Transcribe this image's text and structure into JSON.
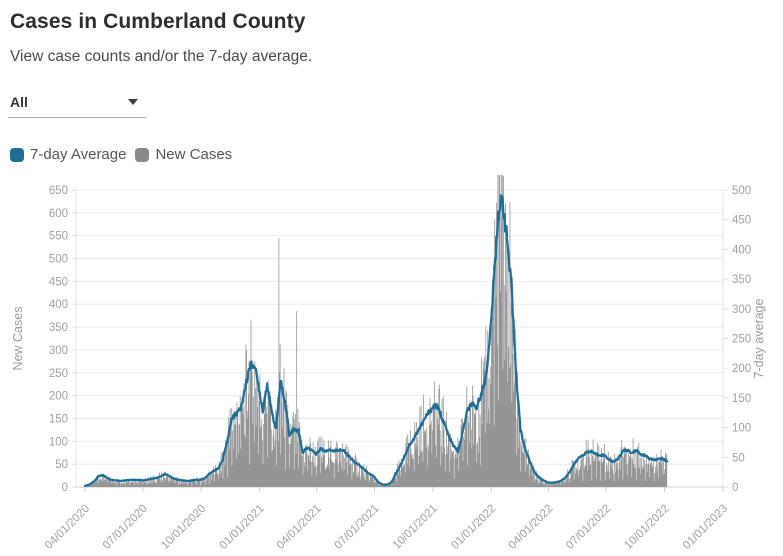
{
  "header": {
    "title": "Cases in Cumberland County",
    "subtitle": "View case counts and/or the 7-day average."
  },
  "filter": {
    "value": "All",
    "icon": "caret-down-icon"
  },
  "legend": [
    {
      "label": "7-day Average",
      "color": "#1f6e98"
    },
    {
      "label": "New Cases",
      "color": "#8a8a8a"
    }
  ],
  "chart_data": {
    "type": "mixed",
    "title": "",
    "grid": "horizontal",
    "colors": {
      "grid": "#ebebeb",
      "axis_line": "#cfcfcf",
      "axis_text": "#a0a0a0",
      "line": "#1f6e98",
      "bar": "#8f8f8f"
    },
    "x_axis": {
      "start_date": "04/01/2020",
      "span_days": 1006,
      "tick_labels": [
        "04/01/2020",
        "07/01/2020",
        "10/01/2020",
        "01/01/2021",
        "04/01/2021",
        "07/01/2021",
        "10/01/2021",
        "01/01/2022",
        "04/01/2022",
        "07/01/2022",
        "10/01/2022",
        "01/01/2023"
      ],
      "tick_days": [
        0,
        91,
        183,
        275,
        365,
        456,
        548,
        640,
        730,
        821,
        913,
        1005
      ]
    },
    "left_axis": {
      "label": "New Cases",
      "min": 0,
      "max": 650,
      "step": 50
    },
    "right_axis": {
      "label": "7-day average",
      "min": 0,
      "max": 500,
      "step": 50
    },
    "series": [
      {
        "name": "7-day Average",
        "type": "line",
        "axis": "right",
        "color": "#1f6e98",
        "x_step_days": 7,
        "start_day": 0,
        "end_day": 917,
        "values": [
          2,
          4,
          9,
          18,
          20,
          15,
          12,
          11,
          10,
          11,
          12,
          12,
          12,
          11,
          12,
          14,
          15,
          18,
          22,
          18,
          14,
          12,
          11,
          10,
          11,
          12,
          12,
          15,
          22,
          27,
          31,
          46,
          77,
          115,
          123,
          131,
          165,
          202,
          208,
          173,
          129,
          175,
          125,
          100,
          178,
          142,
          89,
          97,
          95,
          58,
          66,
          63,
          55,
          65,
          60,
          64,
          60,
          63,
          62,
          55,
          46,
          40,
          35,
          28,
          22,
          18,
          8,
          4,
          4,
          8,
          23,
          37,
          54,
          71,
          81,
          96,
          108,
          122,
          132,
          138,
          123,
          104,
          83,
          68,
          60,
          92,
          127,
          140,
          131,
          154,
          177,
          238,
          346,
          462,
          485,
          415,
          331,
          192,
          96,
          65,
          45,
          27,
          17,
          12,
          8,
          7,
          8,
          10,
          15,
          25,
          37,
          48,
          54,
          58,
          60,
          55,
          54,
          53,
          46,
          42,
          48,
          60,
          62,
          57,
          62,
          55,
          53,
          48,
          45,
          47,
          48,
          42
        ]
      },
      {
        "name": "New Cases",
        "type": "bar",
        "axis": "left",
        "color": "#8f8f8f",
        "derived_from": "7-day Average",
        "line_to_bar_scale": 1.3,
        "end_day": 917,
        "spikes": [
          {
            "day": 306,
            "value": 545
          },
          {
            "day": 334,
            "value": 385
          }
        ]
      }
    ]
  }
}
